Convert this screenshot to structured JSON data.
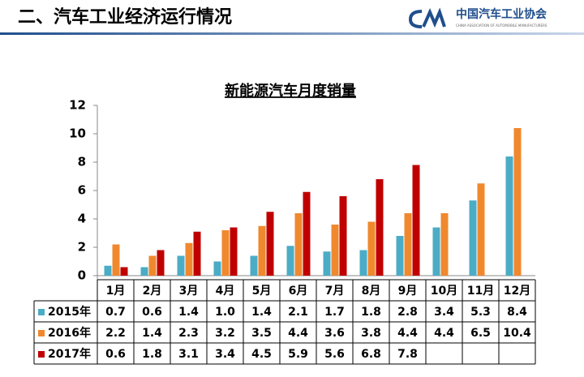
{
  "header": {
    "title": "二、汽车工业经济运行情况",
    "org": "中国汽车工业协会",
    "org_en": "CHINA ASSOCIATION OF AUTOMOBILE MANUFACTURERS"
  },
  "chart_data": {
    "type": "bar",
    "title": "新能源汽车月度销量",
    "categories": [
      "1月",
      "2月",
      "3月",
      "4月",
      "5月",
      "6月",
      "7月",
      "8月",
      "9月",
      "10月",
      "11月",
      "12月"
    ],
    "series": [
      {
        "name": "2015年",
        "color": "#4bacc6",
        "values": [
          0.7,
          0.6,
          1.4,
          1.0,
          1.4,
          2.1,
          1.7,
          1.8,
          2.8,
          3.4,
          5.3,
          8.4
        ],
        "value_labels": [
          "0.7",
          "0.6",
          "1.4",
          "1.0",
          "1.4",
          "2.1",
          "1.7",
          "1.8",
          "2.8",
          "3.4",
          "5.3",
          "8.4"
        ]
      },
      {
        "name": "2016年",
        "color": "#f0882e",
        "values": [
          2.2,
          1.4,
          2.3,
          3.2,
          3.5,
          4.4,
          3.6,
          3.8,
          4.4,
          4.4,
          6.5,
          10.4
        ],
        "value_labels": [
          "2.2",
          "1.4",
          "2.3",
          "3.2",
          "3.5",
          "4.4",
          "3.6",
          "3.8",
          "4.4",
          "4.4",
          "6.5",
          "10.4"
        ]
      },
      {
        "name": "2017年",
        "color": "#c00000",
        "values": [
          0.6,
          1.8,
          3.1,
          3.4,
          4.5,
          5.9,
          5.6,
          6.8,
          7.8,
          null,
          null,
          null
        ],
        "value_labels": [
          "0.6",
          "1.8",
          "3.1",
          "3.4",
          "4.5",
          "5.9",
          "5.6",
          "6.8",
          "7.8",
          null,
          null,
          null
        ]
      }
    ],
    "ylim": [
      0,
      12
    ],
    "yticks": [
      0,
      2,
      4,
      6,
      8,
      10,
      12
    ]
  }
}
